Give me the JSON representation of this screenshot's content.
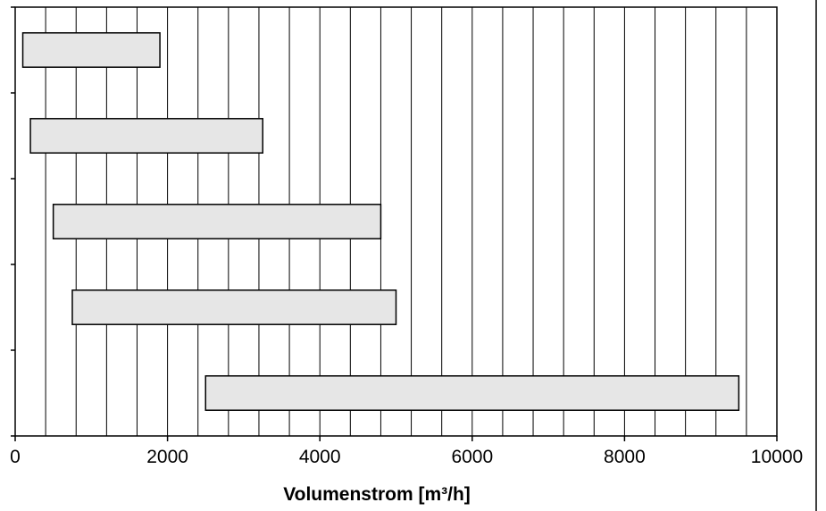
{
  "chart_data": {
    "type": "bar",
    "orientation": "horizontal",
    "bar_style": "floating-range",
    "xlabel": "Volumenstrom [m³/h]",
    "ylabel": "",
    "title": "",
    "xlim": [
      0,
      10000
    ],
    "xticks": [
      0,
      2000,
      4000,
      6000,
      8000,
      10000
    ],
    "xtick_labels": [
      "0",
      "2000",
      "4000",
      "6000",
      "8000",
      "10000"
    ],
    "minor_grid_step": 400,
    "grid": "vertical",
    "legend": "none",
    "categories": [
      "",
      "",
      "",
      "",
      ""
    ],
    "ranges": [
      [
        100,
        1900
      ],
      [
        200,
        3250
      ],
      [
        500,
        4800
      ],
      [
        750,
        5000
      ],
      [
        2500,
        9500
      ]
    ],
    "bar_fill": "#e6e6e6",
    "bar_stroke": "#000000"
  }
}
